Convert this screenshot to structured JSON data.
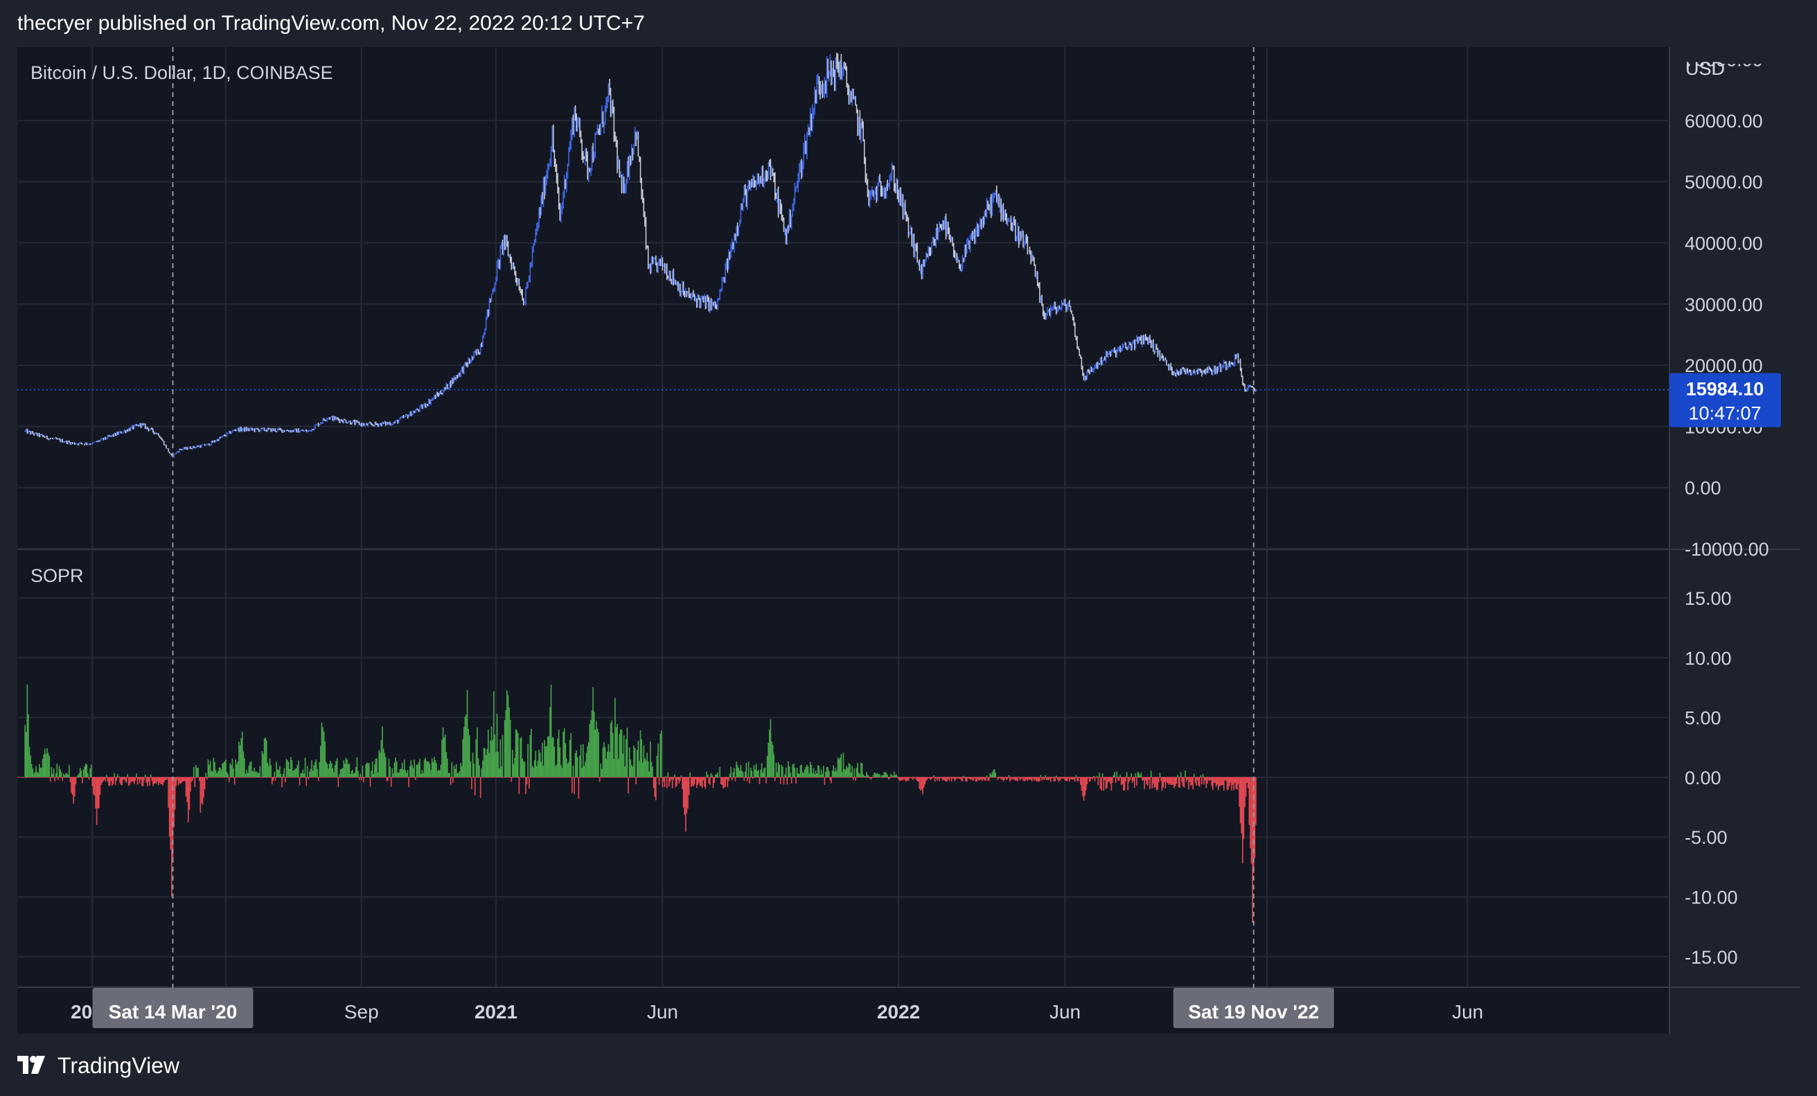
{
  "header": {
    "published_text": "thecryer published on TradingView.com, Nov 22, 2022 20:12 UTC+7"
  },
  "footer": {
    "brand": "TradingView",
    "logo_icon": "tradingview-logo-icon"
  },
  "colors": {
    "background": "#1e222d",
    "pane": "#131722",
    "grid": "#262a35",
    "text": "#d1d4dc",
    "candle_up": "#3f67e8",
    "candle_down": "#c7cbd6",
    "sopr_positive": "#46a24a",
    "sopr_negative": "#e04750",
    "price_badge": "#1848cc",
    "crosshair_label": "#6a6d78"
  },
  "chart_data": [
    {
      "type": "candlestick",
      "title": "Bitcoin / U.S. Dollar, 1D, COINBASE",
      "currency_label": "USD",
      "ylim": [
        -10000,
        72000
      ],
      "y_ticks": [
        "60000.00",
        "50000.00",
        "40000.00",
        "30000.00",
        "20000.00",
        "10000.00",
        "0.00",
        "-10000.00"
      ],
      "y_tick_values": [
        60000,
        50000,
        40000,
        30000,
        20000,
        10000,
        0,
        -10000
      ],
      "y_tick_top_partial": "70000.00",
      "last_price": "15984.10",
      "countdown": "10:47:07",
      "price_key_points": [
        [
          "2019-11-01",
          9200
        ],
        [
          "2019-11-20",
          8200
        ],
        [
          "2019-12-15",
          7200
        ],
        [
          "2020-01-01",
          7200
        ],
        [
          "2020-02-14",
          10300
        ],
        [
          "2020-03-01",
          8700
        ],
        [
          "2020-03-13",
          5000
        ],
        [
          "2020-03-20",
          6200
        ],
        [
          "2020-04-15",
          7000
        ],
        [
          "2020-05-10",
          9500
        ],
        [
          "2020-06-15",
          9400
        ],
        [
          "2020-07-15",
          9200
        ],
        [
          "2020-08-01",
          11500
        ],
        [
          "2020-09-05",
          10200
        ],
        [
          "2020-10-01",
          10600
        ],
        [
          "2020-10-25",
          13000
        ],
        [
          "2020-11-15",
          16000
        ],
        [
          "2020-12-01",
          19200
        ],
        [
          "2020-12-17",
          22500
        ],
        [
          "2021-01-08",
          40500
        ],
        [
          "2021-01-27",
          30500
        ],
        [
          "2021-02-21",
          57000
        ],
        [
          "2021-02-28",
          44000
        ],
        [
          "2021-03-13",
          61500
        ],
        [
          "2021-03-25",
          52000
        ],
        [
          "2021-04-14",
          64000
        ],
        [
          "2021-04-25",
          48000
        ],
        [
          "2021-05-08",
          58500
        ],
        [
          "2021-05-19",
          36000
        ],
        [
          "2021-06-01",
          36500
        ],
        [
          "2021-06-22",
          31500
        ],
        [
          "2021-07-20",
          29500
        ],
        [
          "2021-08-14",
          47500
        ],
        [
          "2021-09-06",
          52500
        ],
        [
          "2021-09-21",
          41000
        ],
        [
          "2021-10-20",
          66000
        ],
        [
          "2021-11-10",
          69000
        ],
        [
          "2021-11-30",
          57000
        ],
        [
          "2021-12-04",
          47000
        ],
        [
          "2021-12-27",
          51000
        ],
        [
          "2022-01-22",
          35000
        ],
        [
          "2022-02-10",
          44000
        ],
        [
          "2022-02-24",
          36000
        ],
        [
          "2022-03-29",
          47500
        ],
        [
          "2022-05-01",
          38000
        ],
        [
          "2022-05-12",
          28500
        ],
        [
          "2022-06-05",
          30000
        ],
        [
          "2022-06-18",
          18000
        ],
        [
          "2022-07-08",
          21500
        ],
        [
          "2022-08-14",
          24500
        ],
        [
          "2022-09-06",
          19000
        ],
        [
          "2022-10-15",
          19200
        ],
        [
          "2022-11-05",
          21300
        ],
        [
          "2022-11-10",
          16300
        ],
        [
          "2022-11-21",
          15984
        ]
      ]
    },
    {
      "type": "bar",
      "title": "SOPR",
      "ylim": [
        -17.5,
        19
      ],
      "y_ticks": [
        "15.00",
        "10.00",
        "5.00",
        "0.00",
        "-5.00",
        "-10.00",
        "-15.00"
      ],
      "y_tick_values": [
        15,
        10,
        5,
        0,
        -5,
        -10,
        -15
      ],
      "sopr_spikes": [
        [
          "2019-11-03",
          7.2
        ],
        [
          "2019-11-20",
          3.0
        ],
        [
          "2019-12-15",
          -3.5
        ],
        [
          "2020-01-05",
          -3.8
        ],
        [
          "2020-03-13",
          -9.5
        ],
        [
          "2020-03-28",
          -3.2
        ],
        [
          "2020-04-10",
          -4.5
        ],
        [
          "2020-05-15",
          3.5
        ],
        [
          "2020-06-05",
          3.8
        ],
        [
          "2020-07-28",
          4.2
        ],
        [
          "2020-09-03",
          -1.2
        ],
        [
          "2020-09-20",
          3.5
        ],
        [
          "2020-11-15",
          3.8
        ],
        [
          "2020-12-05",
          4.6
        ],
        [
          "2020-12-30",
          7.2
        ],
        [
          "2021-01-11",
          5.8
        ],
        [
          "2021-02-20",
          4.3
        ],
        [
          "2021-03-30",
          4.8
        ],
        [
          "2021-04-18",
          4.0
        ],
        [
          "2021-05-19",
          -2.0
        ],
        [
          "2021-06-22",
          -4.2
        ],
        [
          "2021-07-21",
          1.5
        ],
        [
          "2021-09-07",
          4.2
        ],
        [
          "2021-11-10",
          1.6
        ],
        [
          "2022-01-22",
          -1.5
        ],
        [
          "2022-03-28",
          1.0
        ],
        [
          "2022-06-18",
          -2.0
        ],
        [
          "2022-11-09",
          -7.0
        ],
        [
          "2022-11-18",
          -13.0
        ]
      ]
    }
  ],
  "x_axis": {
    "ticks": [
      {
        "label": "2020",
        "date": "2020-01-01",
        "bold": true
      },
      {
        "label": "Sep",
        "date": "2020-09-01",
        "bold": false
      },
      {
        "label": "2021",
        "date": "2021-01-01",
        "bold": true
      },
      {
        "label": "Jun",
        "date": "2021-06-01",
        "bold": false
      },
      {
        "label": "2022",
        "date": "2022-01-01",
        "bold": true
      },
      {
        "label": "Jun",
        "date": "2022-06-01",
        "bold": false
      },
      {
        "label": "Jun",
        "date": "2023-06-01",
        "bold": false
      }
    ],
    "extra_gridlines": [
      "2020-05-01",
      "2022-12-01"
    ],
    "crosshair_labels": [
      {
        "label": "Sat 14 Mar '20",
        "date": "2020-03-14"
      },
      {
        "label": "Sat 19 Nov '22",
        "date": "2022-11-19"
      }
    ]
  }
}
